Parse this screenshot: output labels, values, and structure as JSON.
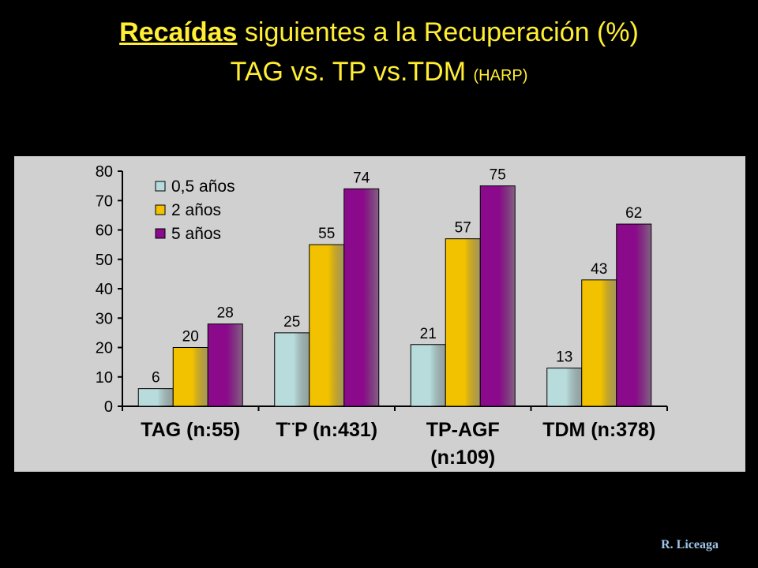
{
  "title": {
    "line1_emphasis": "Recaídas",
    "line1_rest": " siguientes a la Recuperación (%)",
    "line2_main": "TAG vs. TP vs.TDM ",
    "line2_small": "(HARP)"
  },
  "author": "R. Liceaga",
  "chart_data": {
    "type": "bar",
    "categories": [
      [
        "TAG (n:55)"
      ],
      [
        "T¨P (n:431)"
      ],
      [
        "TP-AGF",
        "(n:109)"
      ],
      [
        "TDM (n:378)"
      ]
    ],
    "series": [
      {
        "name": "0,5 años",
        "values": [
          6,
          25,
          21,
          13
        ],
        "color": "#B8DCDC"
      },
      {
        "name": "2 años",
        "values": [
          20,
          55,
          57,
          43
        ],
        "color": "#F2C200"
      },
      {
        "name": "5 años",
        "values": [
          28,
          74,
          75,
          62
        ],
        "color": "#8B0A8B"
      }
    ],
    "ylim": [
      0,
      80
    ],
    "yticks": [
      0,
      10,
      20,
      30,
      40,
      50,
      60,
      70,
      80
    ],
    "legend_position": "top-left",
    "plot_background": "#D0D0D0",
    "data_labels": true
  }
}
